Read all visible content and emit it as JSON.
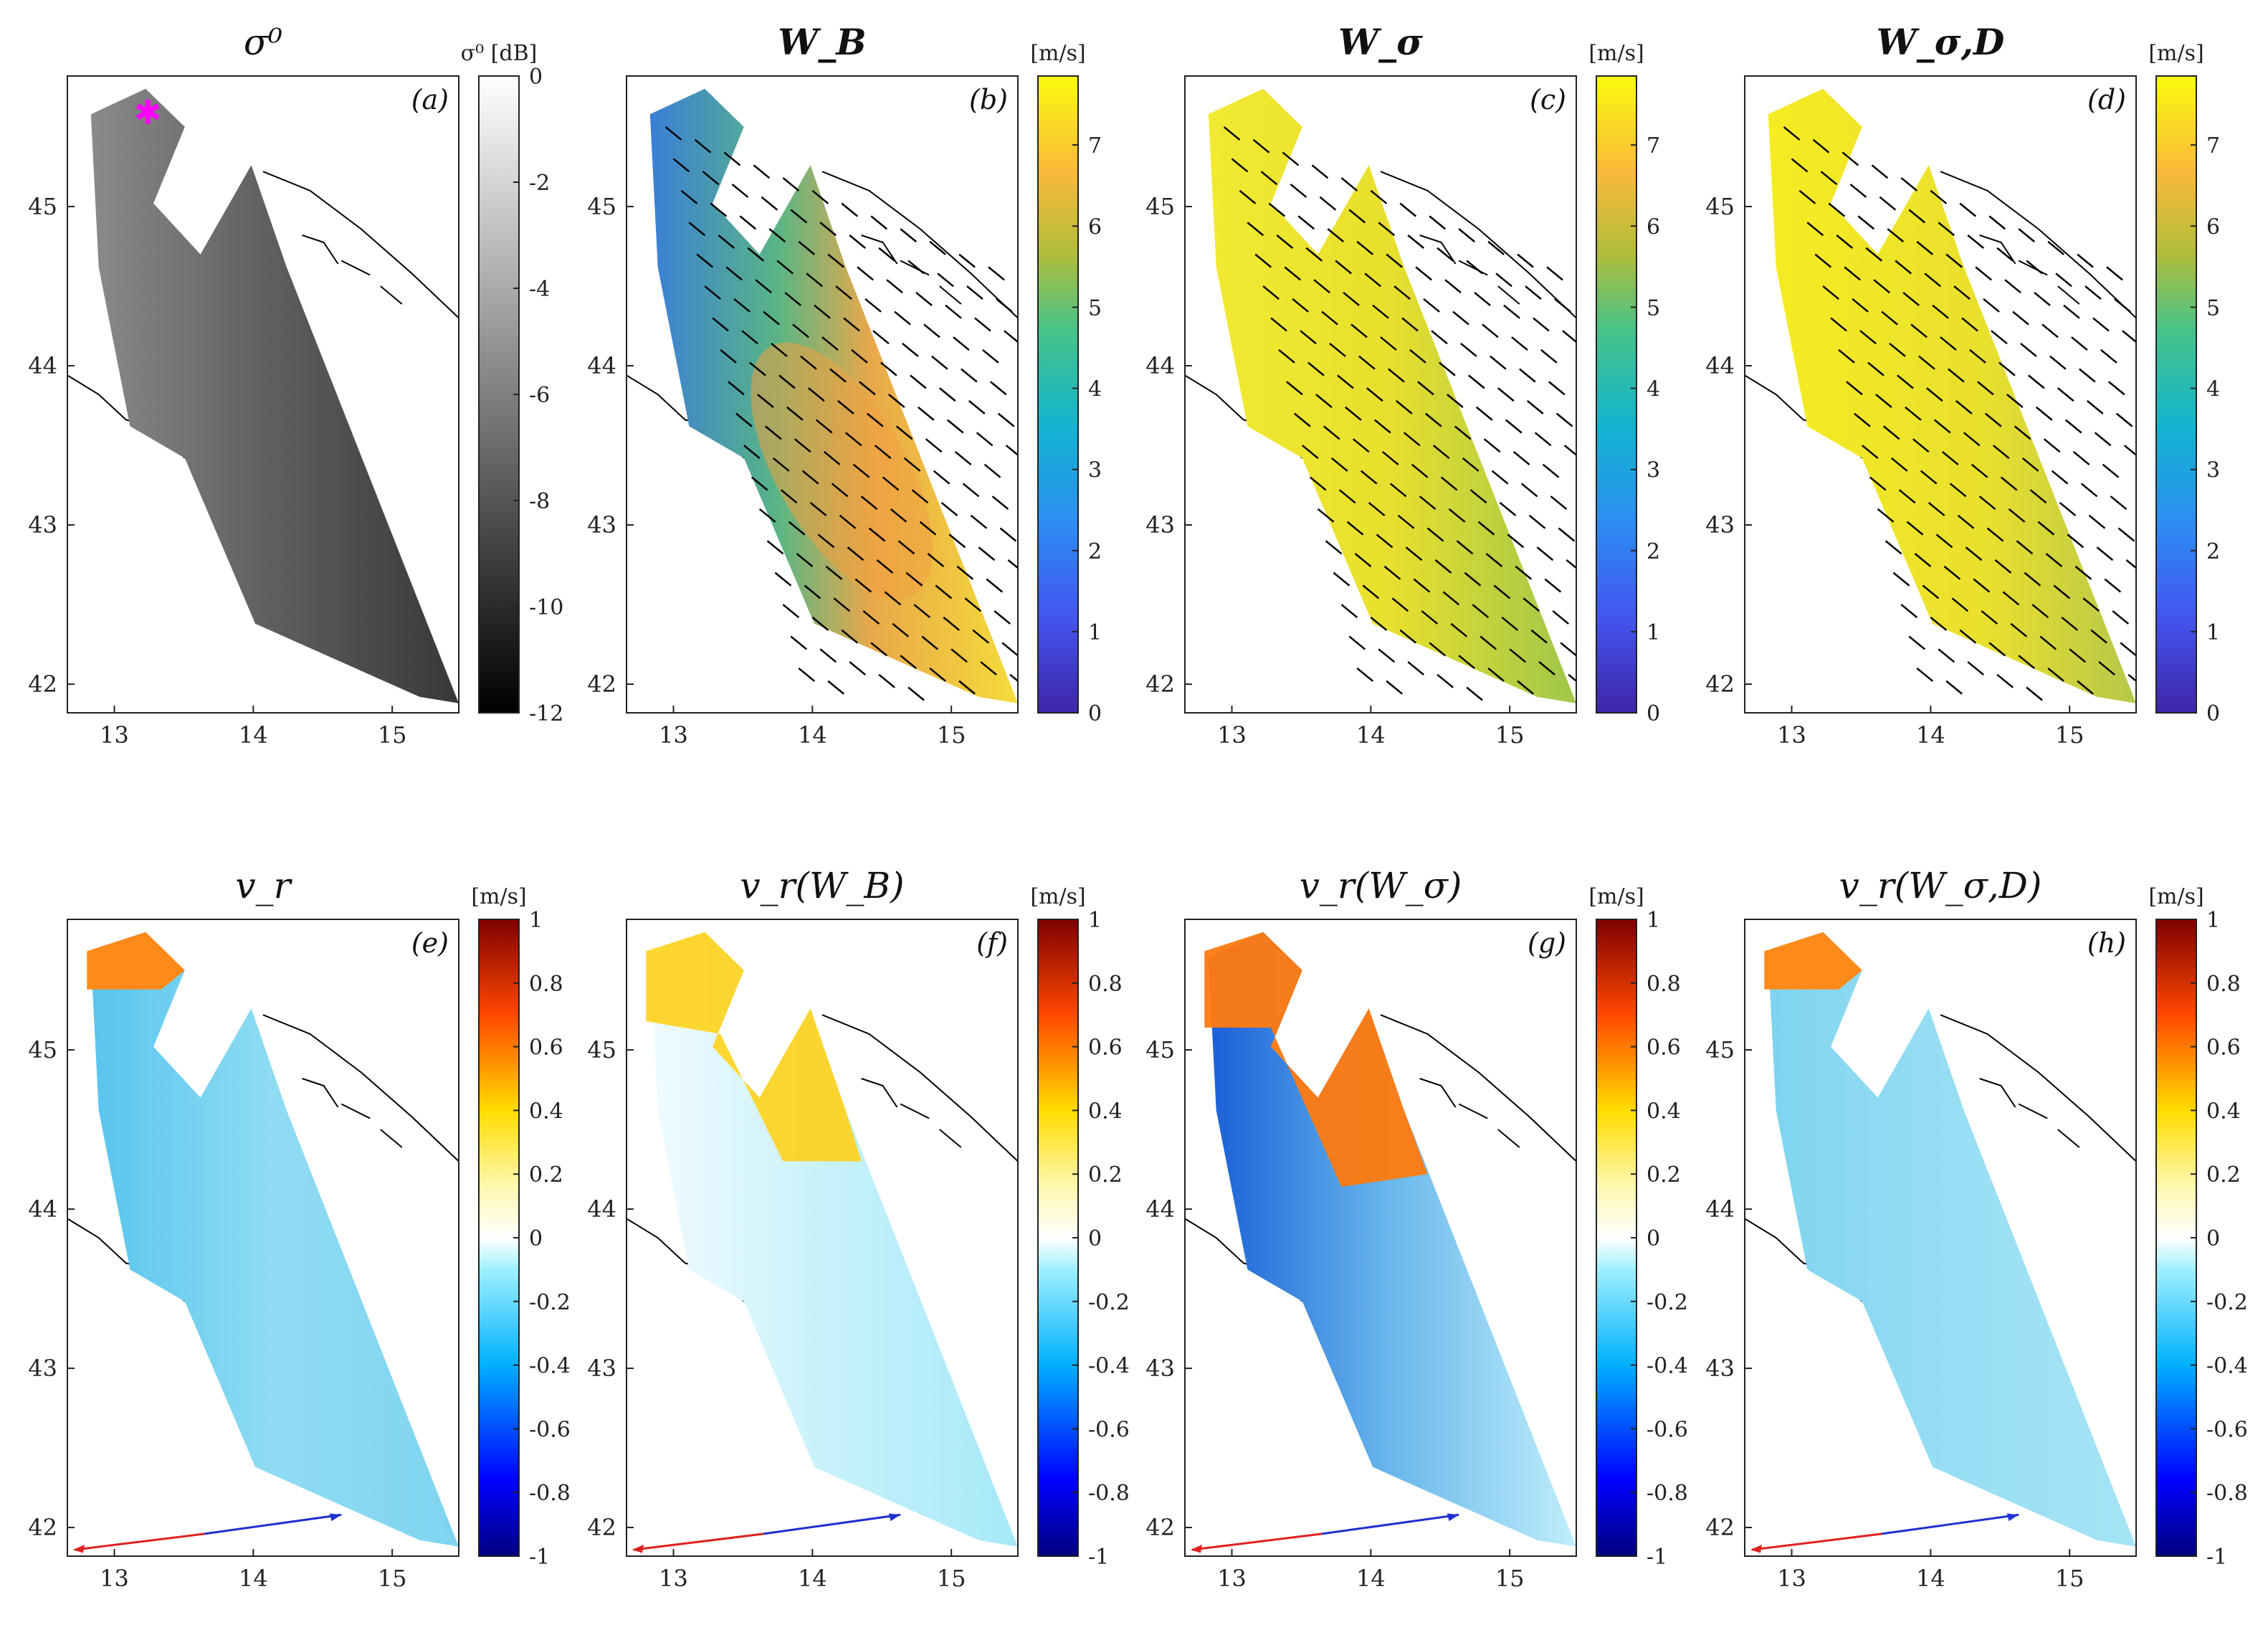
{
  "figure": {
    "panels": [
      {
        "id": "a",
        "tag": "(a)",
        "title": "σ⁰",
        "colorbar": "gray",
        "unit": "σ⁰ [dB]",
        "cbar_ticks": [
          "0",
          "-2",
          "-4",
          "-6",
          "-8",
          "-10",
          "-12"
        ],
        "vectors": "none",
        "marker": true
      },
      {
        "id": "b",
        "tag": "(b)",
        "title": "W_B",
        "colorbar": "parula",
        "unit": "[m/s]",
        "cbar_ticks": [
          "7",
          "6",
          "5",
          "4",
          "3",
          "2",
          "1",
          "0"
        ],
        "vectors": "wind",
        "marker": false
      },
      {
        "id": "c",
        "tag": "(c)",
        "title": "W_σ",
        "colorbar": "parula",
        "unit": "[m/s]",
        "cbar_ticks": [
          "7",
          "6",
          "5",
          "4",
          "3",
          "2",
          "1",
          "0"
        ],
        "vectors": "wind",
        "marker": false
      },
      {
        "id": "d",
        "tag": "(d)",
        "title": "W_σ,D",
        "colorbar": "parula",
        "unit": "[m/s]",
        "cbar_ticks": [
          "7",
          "6",
          "5",
          "4",
          "3",
          "2",
          "1",
          "0"
        ],
        "vectors": "wind",
        "marker": false
      },
      {
        "id": "e",
        "tag": "(e)",
        "title": "v_r",
        "colorbar": "jet",
        "unit": "[m/s]",
        "cbar_ticks": [
          "1",
          "0.8",
          "0.6",
          "0.4",
          "0.2",
          "0",
          "-0.2",
          "-0.4",
          "-0.6",
          "-0.8",
          "-1"
        ],
        "vectors": "radar",
        "marker": false
      },
      {
        "id": "f",
        "tag": "(f)",
        "title": "v_r(W_B)",
        "colorbar": "jet",
        "unit": "[m/s]",
        "cbar_ticks": [
          "1",
          "0.8",
          "0.6",
          "0.4",
          "0.2",
          "0",
          "-0.2",
          "-0.4",
          "-0.6",
          "-0.8",
          "-1"
        ],
        "vectors": "radar",
        "marker": false
      },
      {
        "id": "g",
        "tag": "(g)",
        "title": "v_r(W_σ)",
        "colorbar": "jet",
        "unit": "[m/s]",
        "cbar_ticks": [
          "1",
          "0.8",
          "0.6",
          "0.4",
          "0.2",
          "0",
          "-0.2",
          "-0.4",
          "-0.6",
          "-0.8",
          "-1"
        ],
        "vectors": "radar",
        "marker": false
      },
      {
        "id": "h",
        "tag": "(h)",
        "title": "v_r(W_σ,D)",
        "colorbar": "jet",
        "unit": "[m/s]",
        "cbar_ticks": [
          "1",
          "0.8",
          "0.6",
          "0.4",
          "0.2",
          "0",
          "-0.2",
          "-0.4",
          "-0.6",
          "-0.8",
          "-1"
        ],
        "vectors": "radar",
        "marker": false
      }
    ],
    "x_ticks": [
      "13",
      "14",
      "15"
    ],
    "y_ticks": [
      "45",
      "44",
      "43",
      "42"
    ],
    "colors": {
      "marker": "#ff00ff",
      "arrow_range": "#e02020",
      "arrow_azimuth": "#2030d0",
      "coast": "#000000"
    }
  }
}
